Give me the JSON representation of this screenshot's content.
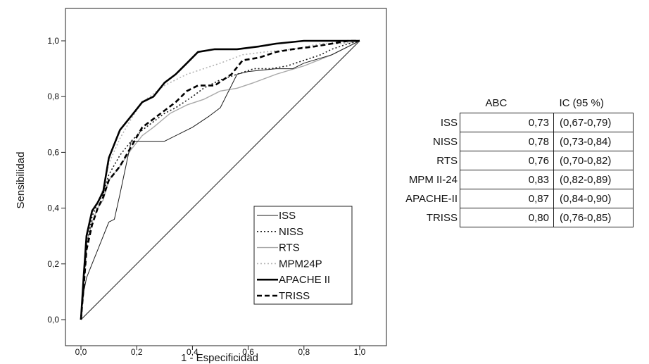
{
  "chart_data": {
    "type": "line",
    "xlabel": "1 - Especificidad",
    "ylabel": "Sensibilidad",
    "xlim": [
      0,
      1
    ],
    "ylim": [
      0,
      1
    ],
    "x_ticks": [
      "0,0",
      "0,2",
      "0,4",
      "0,6",
      "0,8",
      "1,0"
    ],
    "y_ticks": [
      "0,0",
      "0,2",
      "0,4",
      "0,6",
      "0,8",
      "1,0"
    ],
    "grid": false,
    "legend_position": "bottom-right",
    "reference_line": {
      "x": [
        0,
        1
      ],
      "y": [
        0,
        1
      ]
    },
    "series": [
      {
        "name": "ISS",
        "color": "#1a1a1a",
        "style": "solid-thin",
        "x": [
          0,
          0.01,
          0.02,
          0.04,
          0.06,
          0.08,
          0.1,
          0.12,
          0.14,
          0.18,
          0.22,
          0.3,
          0.36,
          0.4,
          0.46,
          0.5,
          0.52,
          0.56,
          0.6,
          0.7,
          0.76,
          0.8,
          0.9,
          1.0
        ],
        "y": [
          0,
          0.1,
          0.15,
          0.2,
          0.25,
          0.3,
          0.35,
          0.36,
          0.45,
          0.64,
          0.64,
          0.64,
          0.67,
          0.69,
          0.73,
          0.76,
          0.8,
          0.88,
          0.89,
          0.9,
          0.9,
          0.92,
          0.95,
          1.0
        ]
      },
      {
        "name": "NISS",
        "color": "#1a1a1a",
        "style": "dotted",
        "x": [
          0,
          0.01,
          0.02,
          0.04,
          0.06,
          0.08,
          0.1,
          0.14,
          0.18,
          0.22,
          0.26,
          0.3,
          0.34,
          0.4,
          0.44,
          0.5,
          0.56,
          0.62,
          0.68,
          0.74,
          0.8,
          0.86,
          0.9,
          0.96,
          1.0
        ],
        "y": [
          0,
          0.13,
          0.26,
          0.37,
          0.42,
          0.45,
          0.52,
          0.59,
          0.64,
          0.68,
          0.71,
          0.74,
          0.76,
          0.8,
          0.83,
          0.86,
          0.88,
          0.9,
          0.9,
          0.91,
          0.93,
          0.95,
          0.97,
          0.99,
          1.0
        ]
      },
      {
        "name": "RTS",
        "color": "#a8a8a8",
        "style": "solid",
        "x": [
          0,
          0.01,
          0.02,
          0.04,
          0.06,
          0.08,
          0.1,
          0.14,
          0.18,
          0.22,
          0.26,
          0.32,
          0.38,
          0.44,
          0.5,
          0.56,
          0.62,
          0.7,
          0.8,
          0.9,
          1.0
        ],
        "y": [
          0,
          0.14,
          0.27,
          0.35,
          0.4,
          0.43,
          0.5,
          0.55,
          0.61,
          0.66,
          0.69,
          0.74,
          0.77,
          0.79,
          0.82,
          0.83,
          0.85,
          0.88,
          0.91,
          0.95,
          1.0
        ]
      },
      {
        "name": "MPM24P",
        "color": "#b4b4b4",
        "style": "dotted",
        "x": [
          0,
          0.01,
          0.02,
          0.04,
          0.06,
          0.08,
          0.1,
          0.14,
          0.18,
          0.22,
          0.26,
          0.3,
          0.34,
          0.38,
          0.44,
          0.5,
          0.58,
          0.66,
          0.76,
          0.86,
          0.94,
          1.0
        ],
        "y": [
          0,
          0.14,
          0.28,
          0.37,
          0.42,
          0.47,
          0.56,
          0.65,
          0.72,
          0.78,
          0.81,
          0.84,
          0.86,
          0.88,
          0.9,
          0.92,
          0.95,
          0.96,
          0.97,
          0.99,
          0.99,
          1.0
        ]
      },
      {
        "name": "APACHE II",
        "color": "#000000",
        "style": "solid-thick",
        "x": [
          0,
          0.01,
          0.02,
          0.04,
          0.06,
          0.08,
          0.1,
          0.14,
          0.18,
          0.22,
          0.26,
          0.3,
          0.34,
          0.38,
          0.42,
          0.48,
          0.56,
          0.64,
          0.7,
          0.8,
          0.9,
          1.0
        ],
        "y": [
          0,
          0.16,
          0.3,
          0.39,
          0.42,
          0.46,
          0.58,
          0.68,
          0.73,
          0.78,
          0.8,
          0.85,
          0.88,
          0.92,
          0.96,
          0.97,
          0.97,
          0.98,
          0.99,
          1.0,
          1.0,
          1.0
        ]
      },
      {
        "name": "TRISS",
        "color": "#000000",
        "style": "dashed",
        "x": [
          0,
          0.01,
          0.02,
          0.04,
          0.06,
          0.08,
          0.1,
          0.14,
          0.18,
          0.22,
          0.26,
          0.3,
          0.34,
          0.38,
          0.42,
          0.48,
          0.54,
          0.58,
          0.64,
          0.7,
          0.76,
          0.84,
          0.9,
          0.96,
          1.0
        ],
        "y": [
          0,
          0.12,
          0.25,
          0.34,
          0.4,
          0.44,
          0.5,
          0.55,
          0.62,
          0.69,
          0.72,
          0.75,
          0.78,
          0.82,
          0.84,
          0.84,
          0.88,
          0.93,
          0.94,
          0.96,
          0.97,
          0.98,
          0.99,
          1.0,
          1.0
        ]
      }
    ]
  },
  "table": {
    "headers": [
      "",
      "ABC",
      "IC (95 %)"
    ],
    "rows": [
      {
        "label": "ISS",
        "abc": "0,73",
        "ic": "(0,67-0,79)"
      },
      {
        "label": "NISS",
        "abc": "0,78",
        "ic": "(0,73-0,84)"
      },
      {
        "label": "RTS",
        "abc": "0,76",
        "ic": "(0,70-0,82)"
      },
      {
        "label": "MPM II-24",
        "abc": "0,83",
        "ic": "(0,82-0,89)"
      },
      {
        "label": "APACHE-II",
        "abc": "0,87",
        "ic": "(0,84-0,90)"
      },
      {
        "label": "TRISS",
        "abc": "0,80",
        "ic": "(0,76-0,85)"
      }
    ]
  }
}
